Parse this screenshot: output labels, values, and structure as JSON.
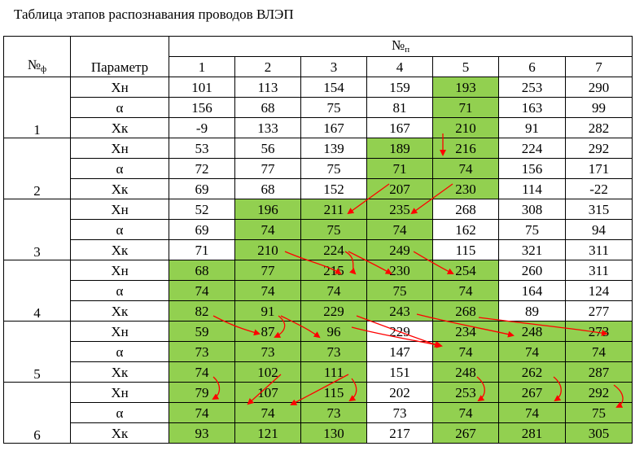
{
  "title": "Таблица этапов распознавания проводов ВЛЭП",
  "header": {
    "f_label": "№",
    "f_sub": "ф",
    "param_label": "Параметр",
    "n_label": "№",
    "n_sub": "п",
    "columns": [
      "1",
      "2",
      "3",
      "4",
      "5",
      "6",
      "7"
    ]
  },
  "groups": [
    {
      "label": "1",
      "rows": [
        {
          "param": "Xн",
          "values": [
            "101",
            "113",
            "154",
            "159",
            "193",
            "253",
            "290"
          ],
          "green": [
            false,
            false,
            false,
            false,
            true,
            false,
            false
          ]
        },
        {
          "param": "α",
          "values": [
            "156",
            "68",
            "75",
            "81",
            "71",
            "163",
            "99"
          ],
          "green": [
            false,
            false,
            false,
            false,
            true,
            false,
            false
          ]
        },
        {
          "param": "Xк",
          "values": [
            "-9",
            "133",
            "167",
            "167",
            "210",
            "91",
            "282"
          ],
          "green": [
            false,
            false,
            false,
            false,
            true,
            false,
            false
          ]
        }
      ]
    },
    {
      "label": "2",
      "rows": [
        {
          "param": "Xн",
          "values": [
            "53",
            "56",
            "139",
            "189",
            "216",
            "224",
            "292"
          ],
          "green": [
            false,
            false,
            false,
            true,
            true,
            false,
            false
          ]
        },
        {
          "param": "α",
          "values": [
            "72",
            "77",
            "75",
            "71",
            "74",
            "156",
            "171"
          ],
          "green": [
            false,
            false,
            false,
            true,
            true,
            false,
            false
          ]
        },
        {
          "param": "Xк",
          "values": [
            "69",
            "68",
            "152",
            "207",
            "230",
            "114",
            "-22"
          ],
          "green": [
            false,
            false,
            false,
            true,
            true,
            false,
            false
          ]
        }
      ]
    },
    {
      "label": "3",
      "rows": [
        {
          "param": "Xн",
          "values": [
            "52",
            "196",
            "211",
            "235",
            "268",
            "308",
            "315"
          ],
          "green": [
            false,
            true,
            true,
            true,
            false,
            false,
            false
          ]
        },
        {
          "param": "α",
          "values": [
            "69",
            "74",
            "75",
            "74",
            "162",
            "75",
            "94"
          ],
          "green": [
            false,
            true,
            true,
            true,
            false,
            false,
            false
          ]
        },
        {
          "param": "Xк",
          "values": [
            "71",
            "210",
            "224",
            "249",
            "115",
            "321",
            "311"
          ],
          "green": [
            false,
            true,
            true,
            true,
            false,
            false,
            false
          ]
        }
      ]
    },
    {
      "label": "4",
      "rows": [
        {
          "param": "Xн",
          "values": [
            "68",
            "77",
            "215",
            "230",
            "254",
            "260",
            "311"
          ],
          "green": [
            true,
            true,
            true,
            true,
            true,
            false,
            false
          ]
        },
        {
          "param": "α",
          "values": [
            "74",
            "74",
            "74",
            "75",
            "74",
            "164",
            "124"
          ],
          "green": [
            true,
            true,
            true,
            true,
            true,
            false,
            false
          ]
        },
        {
          "param": "Xк",
          "values": [
            "82",
            "91",
            "229",
            "243",
            "268",
            "89",
            "277"
          ],
          "green": [
            true,
            true,
            true,
            true,
            true,
            false,
            false
          ]
        }
      ]
    },
    {
      "label": "5",
      "rows": [
        {
          "param": "Xн",
          "values": [
            "59",
            "87",
            "96",
            "229",
            "234",
            "248",
            "273"
          ],
          "green": [
            true,
            true,
            true,
            false,
            true,
            true,
            true
          ]
        },
        {
          "param": "α",
          "values": [
            "73",
            "73",
            "73",
            "147",
            "74",
            "74",
            "74"
          ],
          "green": [
            true,
            true,
            true,
            false,
            true,
            true,
            true
          ]
        },
        {
          "param": "Xк",
          "values": [
            "74",
            "102",
            "111",
            "151",
            "248",
            "262",
            "287"
          ],
          "green": [
            true,
            true,
            true,
            false,
            true,
            true,
            true
          ]
        }
      ]
    },
    {
      "label": "6",
      "rows": [
        {
          "param": "Xн",
          "values": [
            "79",
            "107",
            "115",
            "202",
            "253",
            "267",
            "292"
          ],
          "green": [
            true,
            true,
            true,
            false,
            true,
            true,
            true
          ]
        },
        {
          "param": "α",
          "values": [
            "74",
            "74",
            "73",
            "73",
            "74",
            "74",
            "75"
          ],
          "green": [
            true,
            true,
            true,
            false,
            true,
            true,
            true
          ]
        },
        {
          "param": "Xк",
          "values": [
            "93",
            "121",
            "130",
            "217",
            "267",
            "281",
            "305"
          ],
          "green": [
            true,
            true,
            true,
            false,
            true,
            true,
            true
          ]
        }
      ]
    }
  ],
  "arrow_color": "#ff0000"
}
